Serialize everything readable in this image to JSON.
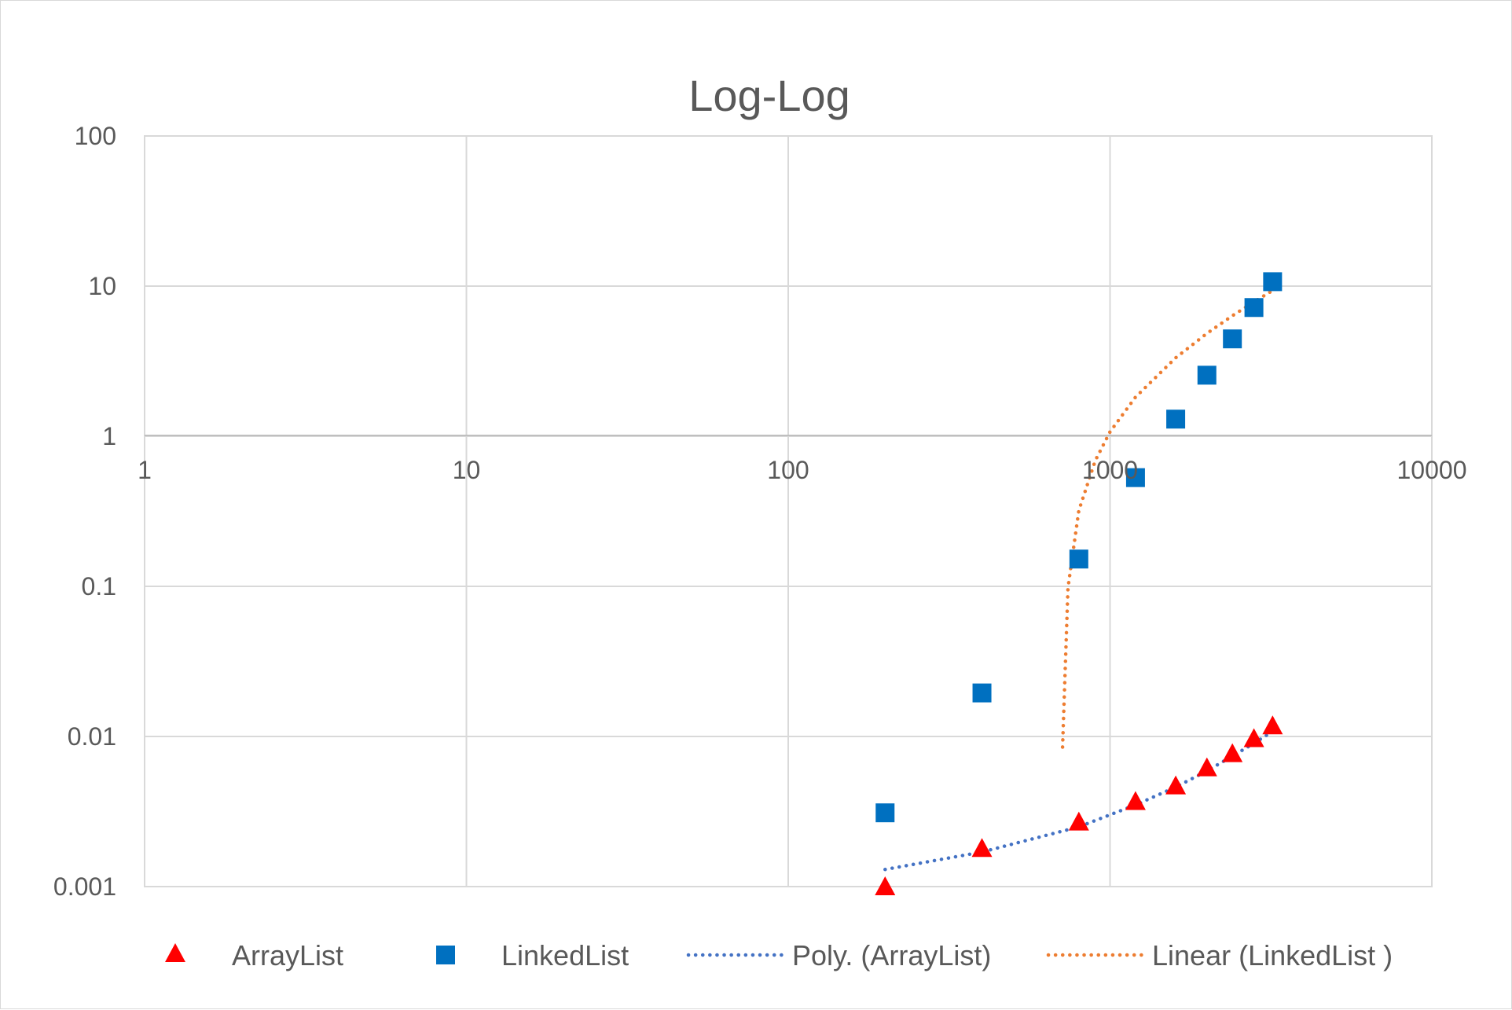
{
  "chart_data": {
    "type": "scatter",
    "title": "Log-Log",
    "xlabel": "",
    "ylabel": "",
    "x_scale": "log",
    "y_scale": "log",
    "xlim": [
      1,
      10000
    ],
    "ylim": [
      0.001,
      100
    ],
    "x_ticks": [
      "1",
      "10",
      "100",
      "1000",
      "10000"
    ],
    "y_ticks": [
      "100",
      "10",
      "1",
      "0.1",
      "0.01",
      "0.001"
    ],
    "grid": true,
    "legend_position": "bottom",
    "series": [
      {
        "name": "ArrayList",
        "marker": "triangle",
        "color": "#ff0000",
        "x": [
          200,
          400,
          800,
          1200,
          1600,
          2000,
          2400,
          2800,
          3200
        ],
        "y": [
          0.001,
          0.0018,
          0.0027,
          0.0037,
          0.0047,
          0.0062,
          0.0077,
          0.0097,
          0.0118
        ]
      },
      {
        "name": "LinkedList",
        "marker": "square",
        "color": "#0070c0",
        "x": [
          200,
          400,
          800,
          1200,
          1600,
          2000,
          2400,
          2800,
          3200
        ],
        "y": [
          0.0031,
          0.0195,
          0.152,
          0.53,
          1.3,
          2.55,
          4.45,
          7.2,
          10.7
        ]
      },
      {
        "name": "Poly. (ArrayList)",
        "type": "trendline",
        "style": "dotted",
        "color": "#4472c4",
        "x": [
          200,
          400,
          800,
          1200,
          1600,
          2000,
          2400,
          2800,
          3200
        ],
        "y": [
          0.0013,
          0.0017,
          0.0025,
          0.0035,
          0.0046,
          0.0059,
          0.0074,
          0.009,
          0.0108
        ]
      },
      {
        "name": "Linear (LinkedList )",
        "type": "trendline",
        "style": "dotted",
        "color": "#ed7d31",
        "x": [
          712,
          740,
          800,
          900,
          1000,
          1200,
          1600,
          2000,
          2400,
          2800,
          3200
        ],
        "y": [
          0.0085,
          0.098,
          0.32,
          0.69,
          1.07,
          1.82,
          3.33,
          4.84,
          6.35,
          7.85,
          9.35
        ]
      }
    ]
  }
}
